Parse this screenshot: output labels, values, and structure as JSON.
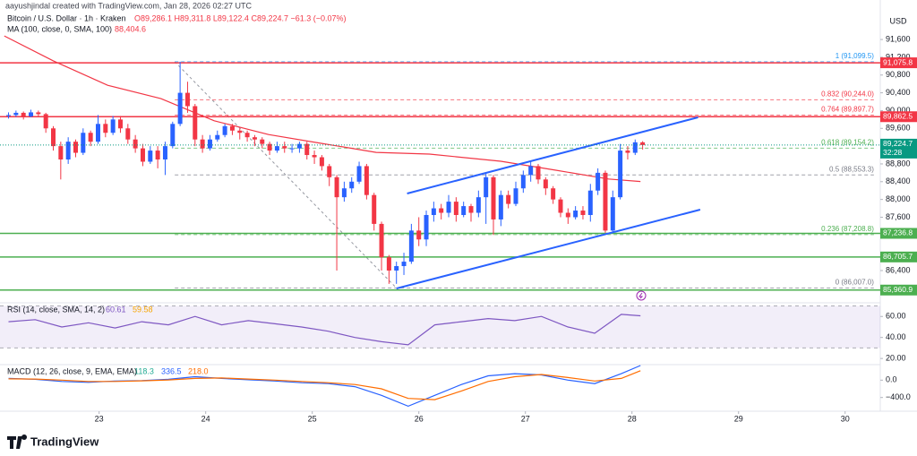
{
  "header": {
    "credit": "aayushjindal created with TradingView.com, Jan 28, 2026 02:27 UTC",
    "currency": "USD",
    "ohlc": "O89,286.1 H89,311.8 L89,122.4 C89,224.7 −61.3 (−0.07%)",
    "logo": "TradingView"
  },
  "chart_data": [
    {
      "type": "candlestick",
      "title": "Bitcoin / U.S. Dollar · 1h · Kraken",
      "up_color": "#2962ff",
      "down_color": "#f23645",
      "xlim": [
        22.07,
        30.33
      ],
      "xticks": [
        23,
        24,
        25,
        26,
        27,
        28,
        29,
        30
      ],
      "ylim": [
        85694,
        92489
      ],
      "yticks": [
        {
          "value": 86400,
          "label": "86,400"
        },
        {
          "value": 87600,
          "label": "87,600"
        },
        {
          "value": 88000,
          "label": "88,000"
        },
        {
          "value": 88400,
          "label": "88,400"
        },
        {
          "value": 88800,
          "label": "88,800"
        },
        {
          "value": 89600,
          "label": "89,600"
        },
        {
          "value": 90000,
          "label": "90,000"
        },
        {
          "value": 90400,
          "label": "90,400"
        },
        {
          "value": 90800,
          "label": "90,800"
        },
        {
          "value": 91200,
          "label": "91,200"
        },
        {
          "value": 91600,
          "label": "91,600"
        }
      ],
      "x": [
        22.15,
        22.22,
        22.29,
        22.36,
        22.43,
        22.5,
        22.57,
        22.64,
        22.71,
        22.78,
        22.85,
        22.92,
        22.99,
        23.06,
        23.13,
        23.2,
        23.27,
        23.34,
        23.41,
        23.48,
        23.55,
        23.62,
        23.69,
        23.76,
        23.83,
        23.9,
        23.97,
        24.04,
        24.11,
        24.18,
        24.25,
        24.32,
        24.39,
        24.46,
        24.53,
        24.6,
        24.67,
        24.74,
        24.81,
        24.88,
        24.95,
        25.02,
        25.09,
        25.16,
        25.23,
        25.3,
        25.37,
        25.44,
        25.51,
        25.58,
        25.65,
        25.72,
        25.79,
        25.86,
        25.93,
        26.0,
        26.07,
        26.14,
        26.21,
        26.28,
        26.35,
        26.42,
        26.49,
        26.56,
        26.63,
        26.7,
        26.77,
        26.84,
        26.91,
        26.98,
        27.05,
        27.12,
        27.19,
        27.26,
        27.33,
        27.4,
        27.47,
        27.54,
        27.61,
        27.68,
        27.75,
        27.82,
        27.89,
        27.96,
        28.03,
        28.1
      ],
      "open": [
        89880,
        89900,
        89950,
        89870,
        89960,
        89920,
        89600,
        89200,
        88900,
        89300,
        89050,
        89500,
        89300,
        89700,
        89500,
        89800,
        89600,
        89350,
        89150,
        88850,
        89100,
        88900,
        89200,
        89700,
        90400,
        90100,
        89350,
        89150,
        89350,
        89450,
        89650,
        89550,
        89500,
        89400,
        89350,
        89250,
        89100,
        89200,
        89150,
        89150,
        89250,
        89000,
        88950,
        88750,
        88500,
        88050,
        88250,
        88400,
        88750,
        88100,
        87450,
        86700,
        86400,
        86500,
        86600,
        87300,
        87100,
        87650,
        87800,
        87700,
        87950,
        87650,
        87850,
        87700,
        88050,
        88500,
        87550,
        88100,
        87900,
        88250,
        88550,
        88750,
        88450,
        88250,
        88000,
        87700,
        87600,
        87750,
        87650,
        88200,
        88600,
        87300,
        88050,
        89100,
        89050,
        89286.1
      ],
      "high": [
        89960,
        90000,
        89980,
        90020,
        90000,
        89950,
        89650,
        89300,
        89400,
        89350,
        89600,
        89550,
        89900,
        89800,
        89880,
        89880,
        89700,
        89450,
        89250,
        89200,
        89200,
        89300,
        89750,
        91100,
        90650,
        90150,
        89450,
        89450,
        89550,
        89700,
        89700,
        89600,
        89550,
        89450,
        89400,
        89300,
        89300,
        89300,
        89250,
        89300,
        89300,
        89100,
        89000,
        88800,
        88550,
        88400,
        88500,
        88850,
        88800,
        88150,
        87500,
        86750,
        86600,
        86800,
        87450,
        87600,
        87750,
        87950,
        87900,
        88100,
        88050,
        87950,
        87900,
        88200,
        88600,
        88550,
        88200,
        88200,
        88400,
        88650,
        88850,
        88800,
        88500,
        88300,
        88050,
        87800,
        87850,
        87850,
        88350,
        88700,
        88650,
        88200,
        89250,
        89200,
        89350,
        89311.8
      ],
      "low": [
        89820,
        89860,
        89800,
        89850,
        89850,
        89500,
        89100,
        88450,
        88800,
        88950,
        89000,
        89200,
        89250,
        89400,
        89450,
        89500,
        89250,
        89050,
        88750,
        88800,
        88700,
        88550,
        89150,
        89650,
        89950,
        89200,
        89050,
        89100,
        89300,
        89400,
        89450,
        89350,
        89300,
        89200,
        89150,
        89000,
        89050,
        89050,
        89050,
        89050,
        88900,
        88800,
        88650,
        88300,
        86400,
        87950,
        88150,
        88350,
        88000,
        87300,
        86400,
        86100,
        86100,
        86300,
        86550,
        86950,
        86950,
        87500,
        87550,
        87600,
        87500,
        87600,
        87500,
        87600,
        87450,
        87200,
        87400,
        87800,
        87850,
        88150,
        88400,
        88350,
        88100,
        87900,
        87600,
        87450,
        87550,
        87550,
        87500,
        88100,
        87250,
        87250,
        88000,
        88900,
        89000,
        89122.4
      ],
      "close": [
        89900,
        89950,
        89870,
        89960,
        89920,
        89600,
        89200,
        88900,
        89300,
        89050,
        89500,
        89300,
        89700,
        89500,
        89800,
        89600,
        89350,
        89150,
        88850,
        89100,
        88900,
        89200,
        89700,
        90400,
        90100,
        89350,
        89150,
        89350,
        89450,
        89650,
        89550,
        89500,
        89400,
        89350,
        89250,
        89100,
        89200,
        89150,
        89150,
        89250,
        89000,
        88950,
        88750,
        88500,
        88050,
        88250,
        88400,
        88750,
        88100,
        87450,
        86700,
        86400,
        86500,
        86600,
        87300,
        87100,
        87650,
        87800,
        87700,
        87950,
        87650,
        87850,
        87700,
        88050,
        88500,
        87550,
        88100,
        87900,
        88250,
        88550,
        88750,
        88450,
        88250,
        88000,
        87700,
        87600,
        87750,
        87650,
        88200,
        88600,
        87300,
        88050,
        89100,
        89050,
        89286.1,
        89224.7
      ],
      "ma": {
        "name": "MA (100, close, 0, SMA, 100)",
        "value_label": "88,404.6",
        "color": "#f23645",
        "x": [
          22.11,
          22.57,
          23.08,
          23.58,
          24.08,
          24.59,
          25.09,
          25.6,
          26.1,
          26.77,
          27.28,
          27.78,
          28.08
        ],
        "values": [
          91680,
          91120,
          90570,
          90270,
          89770,
          89460,
          89260,
          89060,
          89020,
          88860,
          88660,
          88460,
          88404.6
        ]
      },
      "trendlines": {
        "color": "#2962ff",
        "lines": [
          {
            "x": [
              25.89,
              28.62
            ],
            "values": [
              88134,
              89847
            ]
          },
          {
            "x": [
              25.79,
              28.64
            ],
            "values": [
              85997,
              87771
            ]
          }
        ]
      },
      "fib": {
        "x": [
          23.71,
          25.79
        ],
        "end_x": 30.27,
        "levels": [
          {
            "value": 91099.5,
            "label": "1 (91,099.5)",
            "color": "#2196f3"
          },
          {
            "value": 90244,
            "label": "0.832 (90,244.0)",
            "color": "#f23645"
          },
          {
            "value": 89897.7,
            "label": "0.764 (89,897.7)",
            "color": "#f23645"
          },
          {
            "value": 89154.2,
            "label": "0.618 (89,154.2)",
            "color": "#4caf50"
          },
          {
            "value": 88553.3,
            "label": "0.5 (88,553.3)",
            "color": "#787b86"
          },
          {
            "value": 87208.8,
            "label": "0.236 (87,208.8)",
            "color": "#4caf50"
          },
          {
            "value": 86007,
            "label": "0 (86,007.0)",
            "color": "#787b86"
          }
        ]
      },
      "hlines": [
        {
          "value": 91075.8,
          "label": "91,075.8",
          "color": "#f23645"
        },
        {
          "value": 89862.5,
          "label": "89,862.5",
          "color": "#f23645"
        },
        {
          "value": 87236.8,
          "label": "87,236.8",
          "color": "#4caf50"
        },
        {
          "value": 86705.7,
          "label": "86,705.7",
          "color": "#4caf50"
        },
        {
          "value": 85960.9,
          "label": "85,960.9",
          "color": "#4caf50"
        }
      ],
      "last": {
        "value": 89224.7,
        "label": "89,224.7",
        "countdown": "32:28",
        "color": "#089981"
      }
    },
    {
      "type": "line",
      "title": "RSI (14, close, SMA, 14, 2)",
      "readout": [
        {
          "label": "60.61",
          "color": "#7e57c2"
        },
        {
          "label": "59.58",
          "color": "#f7a600"
        }
      ],
      "xlim": [
        22.07,
        30.33
      ],
      "ylim": [
        15,
        73
      ],
      "yticks": [
        {
          "value": 20,
          "label": "20.00"
        },
        {
          "value": 40,
          "label": "40.00"
        },
        {
          "value": 60,
          "label": "60.00"
        }
      ],
      "band": [
        30,
        70
      ],
      "series": [
        {
          "color": "#7e57c2",
          "x": [
            22.15,
            22.4,
            22.65,
            22.9,
            23.15,
            23.4,
            23.65,
            23.9,
            24.15,
            24.4,
            24.65,
            24.9,
            25.15,
            25.4,
            25.65,
            25.9,
            26.15,
            26.4,
            26.65,
            26.9,
            27.15,
            27.4,
            27.65,
            27.9,
            28.08
          ],
          "values": [
            55,
            57,
            50,
            54,
            49,
            55,
            52,
            60,
            52,
            56,
            53,
            50,
            46,
            40,
            36,
            33,
            52,
            55,
            58,
            56,
            60,
            50,
            44,
            62,
            60.61
          ]
        }
      ]
    },
    {
      "type": "line",
      "title": "MACD (12, 26, close, 9, EMA, EMA)",
      "readout": [
        {
          "label": "118.3",
          "color": "#22ab94"
        },
        {
          "label": "336.5",
          "color": "#2962ff"
        },
        {
          "label": "218.0",
          "color": "#ff6d00"
        }
      ],
      "xlim": [
        22.07,
        30.33
      ],
      "ylim": [
        -695,
        358
      ],
      "yticks": [
        {
          "value": -400,
          "label": "−400.0"
        },
        {
          "value": 0,
          "label": "0.0"
        }
      ],
      "series": [
        {
          "color": "#2962ff",
          "x": [
            22.15,
            22.4,
            22.65,
            22.9,
            23.15,
            23.4,
            23.65,
            23.9,
            24.15,
            24.4,
            24.65,
            24.9,
            25.15,
            25.4,
            25.65,
            25.9,
            26.15,
            26.4,
            26.65,
            26.9,
            27.15,
            27.4,
            27.65,
            27.9,
            28.08
          ],
          "values": [
            40,
            20,
            -30,
            -50,
            -20,
            -10,
            20,
            80,
            40,
            10,
            -20,
            -60,
            -80,
            -150,
            -350,
            -600,
            -350,
            -100,
            100,
            150,
            120,
            0,
            -80,
            150,
            336.5
          ]
        },
        {
          "color": "#ff6d00",
          "x": [
            22.15,
            22.4,
            22.65,
            22.9,
            23.15,
            23.4,
            23.65,
            23.9,
            24.15,
            24.4,
            24.65,
            24.9,
            25.15,
            25.4,
            25.65,
            25.9,
            26.15,
            26.4,
            26.65,
            26.9,
            27.15,
            27.4,
            27.65,
            27.9,
            28.08
          ],
          "values": [
            30,
            25,
            0,
            -30,
            -30,
            -15,
            5,
            40,
            50,
            25,
            0,
            -30,
            -60,
            -100,
            -200,
            -420,
            -450,
            -250,
            -30,
            80,
            130,
            60,
            -20,
            40,
            218
          ]
        }
      ]
    }
  ]
}
